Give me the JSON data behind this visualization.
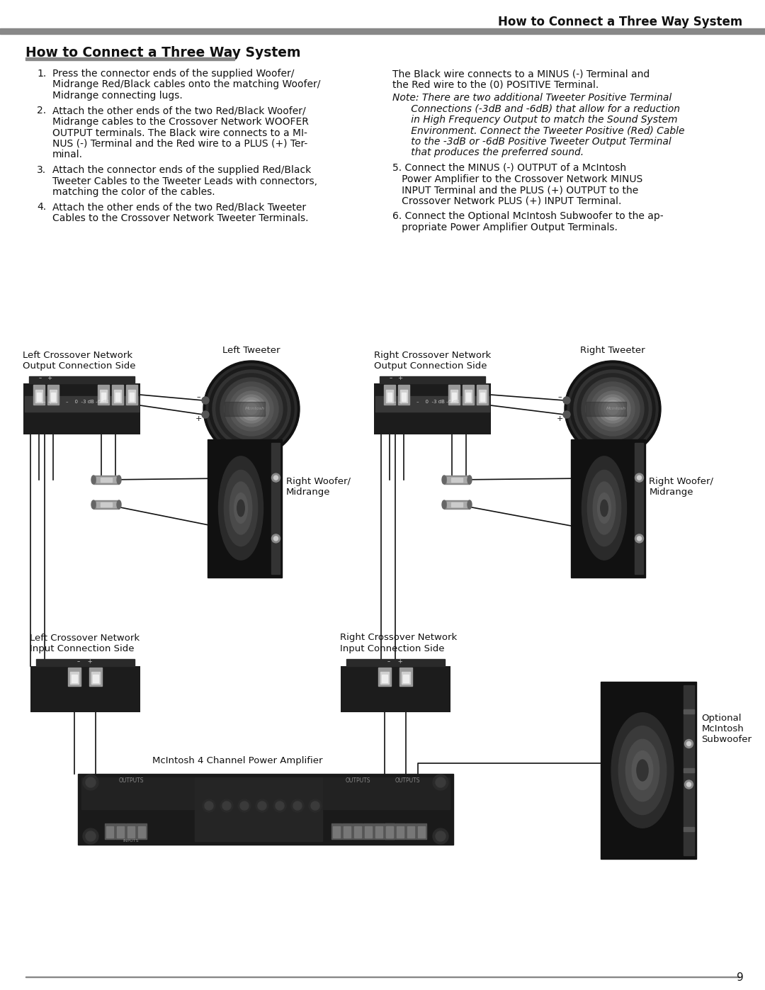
{
  "page_title": "How to Connect a Three Way System",
  "section_title": "How to Connect a Three Way System",
  "page_number": "9",
  "background_color": "#ffffff",
  "body_text_color": "#111111",
  "instructions_left": [
    [
      "1.",
      "Press the connector ends of the supplied Woofer/\nMidrange Red/Black cables onto the matching Woofer/\nMidrange connecting lugs."
    ],
    [
      "2.",
      "Attach the other ends of the two Red/Black Woofer/\nMidrange cables to the Crossover Network WOOFER\nOUTPUT terminals. The Black wire connects to a MI-\nNUS (-) Terminal and the Red wire to a PLUS (+) Ter-\nminal."
    ],
    [
      "3.",
      "Attach the connector ends of the supplied Red/Black\nTweeter Cables to the Tweeter Leads with connectors,\nmatching the color of the cables."
    ],
    [
      "4.",
      "Attach the other ends of the two Red/Black Tweeter\nCables to the Crossover Network Tweeter Terminals."
    ]
  ],
  "right_text1": "The Black wire connects to a MINUS (-) Terminal and\nthe Red wire to the (0) POSITIVE Terminal.",
  "right_note": "Note: There are two additional Tweeter Positive Terminal\n      Connections (-3dB and -6dB) that allow for a reduction\n      in High Frequency Output to match the Sound System\n      Environment. Connect the Tweeter Positive (Red) Cable\n      to the -3dB or -6dB Positive Tweeter Output Terminal\n      that produces the preferred sound.",
  "right_text5": "5. Connect the MINUS (-) OUTPUT of a McIntosh\n   Power Amplifier to the Crossover Network MINUS\n   INPUT Terminal and the PLUS (+) OUTPUT to the\n   Crossover Network PLUS (+) INPUT Terminal.",
  "right_text6": "6. Connect the Optional McIntosh Subwoofer to the ap-\n   propriate Power Amplifier Output Terminals.",
  "lbl_lcn_out": "Left Crossover Network\nOutput Connection Side",
  "lbl_lt": "Left Tweeter",
  "lbl_rcn_out": "Right Crossover Network\nOutput Connection Side",
  "lbl_rt": "Right Tweeter",
  "lbl_lw": "Right Woofer/\nMidrange",
  "lbl_rw": "Right Woofer/\nMidrange",
  "lbl_lcn_in": "Left Crossover Network\nInput Connection Side",
  "lbl_rcn_in": "Right Crossover Network\nInput Connection Side",
  "lbl_sub": "Optional\nMcIntosh\nSubwoofer",
  "lbl_amp": "McIntosh 4 Channel Power Amplifier"
}
